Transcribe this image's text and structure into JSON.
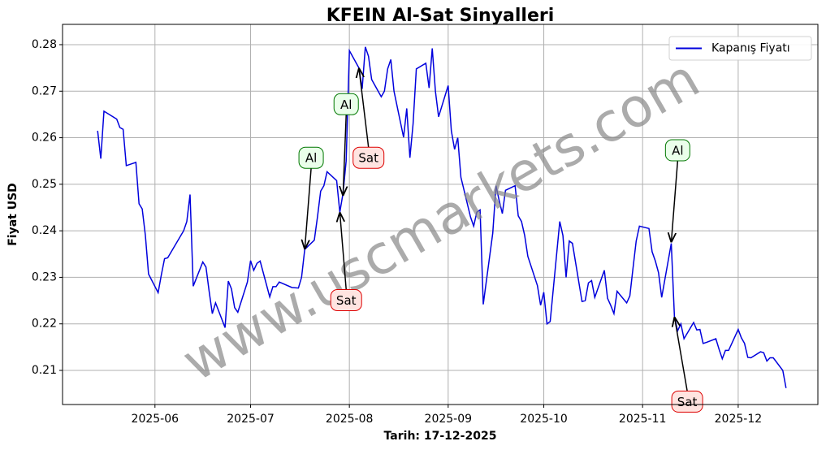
{
  "chart_data": {
    "type": "line",
    "title": "KFEIN Al-Sat Sinyalleri",
    "xlabel": "Tarih: 17-12-2025",
    "ylabel": "Fiyat USD",
    "watermark": "www.uscmarkets.com",
    "legend": "upper right",
    "grid": true,
    "xlim": [
      "2025-05-03",
      "2025-12-26"
    ],
    "ylim": [
      0.20267,
      0.28436
    ],
    "xticks": [
      {
        "value": "2025-06-01",
        "label": "2025-06"
      },
      {
        "value": "2025-07-01",
        "label": "2025-07"
      },
      {
        "value": "2025-08-01",
        "label": "2025-08"
      },
      {
        "value": "2025-09-01",
        "label": "2025-09"
      },
      {
        "value": "2025-10-01",
        "label": "2025-10"
      },
      {
        "value": "2025-11-01",
        "label": "2025-11"
      },
      {
        "value": "2025-12-01",
        "label": "2025-12"
      }
    ],
    "yticks": [
      0.21,
      0.22,
      0.23,
      0.24,
      0.25,
      0.26,
      0.27,
      0.28
    ],
    "x": [
      "2025-05-14",
      "2025-05-15",
      "2025-05-16",
      "2025-05-20",
      "2025-05-21",
      "2025-05-22",
      "2025-05-23",
      "2025-05-26",
      "2025-05-27",
      "2025-05-28",
      "2025-05-29",
      "2025-05-30",
      "2025-06-02",
      "2025-06-03",
      "2025-06-04",
      "2025-06-05",
      "2025-06-10",
      "2025-06-11",
      "2025-06-12",
      "2025-06-13",
      "2025-06-16",
      "2025-06-17",
      "2025-06-18",
      "2025-06-19",
      "2025-06-20",
      "2025-06-23",
      "2025-06-24",
      "2025-06-25",
      "2025-06-26",
      "2025-06-27",
      "2025-06-30",
      "2025-07-01",
      "2025-07-02",
      "2025-07-03",
      "2025-07-04",
      "2025-07-07",
      "2025-07-08",
      "2025-07-09",
      "2025-07-10",
      "2025-07-14",
      "2025-07-16",
      "2025-07-17",
      "2025-07-18",
      "2025-07-21",
      "2025-07-22",
      "2025-07-23",
      "2025-07-24",
      "2025-07-25",
      "2025-07-28",
      "2025-07-29",
      "2025-07-30",
      "2025-07-31",
      "2025-08-01",
      "2025-08-04",
      "2025-08-05",
      "2025-08-06",
      "2025-08-07",
      "2025-08-08",
      "2025-08-11",
      "2025-08-12",
      "2025-08-13",
      "2025-08-14",
      "2025-08-15",
      "2025-08-18",
      "2025-08-19",
      "2025-08-20",
      "2025-08-21",
      "2025-08-22",
      "2025-08-25",
      "2025-08-26",
      "2025-08-27",
      "2025-08-28",
      "2025-08-29",
      "2025-09-01",
      "2025-09-02",
      "2025-09-03",
      "2025-09-04",
      "2025-09-05",
      "2025-09-08",
      "2025-09-09",
      "2025-09-10",
      "2025-09-11",
      "2025-09-12",
      "2025-09-15",
      "2025-09-16",
      "2025-09-17",
      "2025-09-18",
      "2025-09-19",
      "2025-09-22",
      "2025-09-23",
      "2025-09-24",
      "2025-09-25",
      "2025-09-26",
      "2025-09-29",
      "2025-09-30",
      "2025-10-01",
      "2025-10-02",
      "2025-10-03",
      "2025-10-06",
      "2025-10-07",
      "2025-10-08",
      "2025-10-09",
      "2025-10-10",
      "2025-10-13",
      "2025-10-14",
      "2025-10-15",
      "2025-10-16",
      "2025-10-17",
      "2025-10-20",
      "2025-10-21",
      "2025-10-22",
      "2025-10-23",
      "2025-10-24",
      "2025-10-27",
      "2025-10-28",
      "2025-10-29",
      "2025-10-30",
      "2025-10-31",
      "2025-11-03",
      "2025-11-04",
      "2025-11-05",
      "2025-11-06",
      "2025-11-07",
      "2025-11-10",
      "2025-11-11",
      "2025-11-12",
      "2025-11-13",
      "2025-11-14",
      "2025-11-17",
      "2025-11-18",
      "2025-11-19",
      "2025-11-20",
      "2025-11-21",
      "2025-11-24",
      "2025-11-25",
      "2025-11-26",
      "2025-11-27",
      "2025-11-28",
      "2025-12-01",
      "2025-12-02",
      "2025-12-03",
      "2025-12-04",
      "2025-12-05",
      "2025-12-08",
      "2025-12-09",
      "2025-12-10",
      "2025-12-11",
      "2025-12-12",
      "2025-12-15",
      "2025-12-16"
    ],
    "series": [
      {
        "name": "Kapanış Fiyatı",
        "color": "#0000dd",
        "values": [
          0.2615,
          0.2555,
          0.2657,
          0.264,
          0.2622,
          0.2618,
          0.254,
          0.2547,
          0.2458,
          0.2447,
          0.239,
          0.2307,
          0.2267,
          0.2305,
          0.234,
          0.2342,
          0.24,
          0.242,
          0.2478,
          0.2281,
          0.2333,
          0.2322,
          0.227,
          0.2222,
          0.2245,
          0.2192,
          0.2292,
          0.2275,
          0.2235,
          0.2225,
          0.229,
          0.2336,
          0.2315,
          0.233,
          0.2335,
          0.2258,
          0.228,
          0.228,
          0.229,
          0.2278,
          0.2277,
          0.23,
          0.236,
          0.238,
          0.243,
          0.2485,
          0.2497,
          0.2527,
          0.2508,
          0.244,
          0.248,
          0.255,
          0.2787,
          0.275,
          0.2705,
          0.2795,
          0.2775,
          0.2725,
          0.2688,
          0.27,
          0.2748,
          0.2768,
          0.27,
          0.2601,
          0.2663,
          0.2557,
          0.263,
          0.2748,
          0.276,
          0.2707,
          0.2792,
          0.27,
          0.2645,
          0.2712,
          0.2615,
          0.2575,
          0.26,
          0.2515,
          0.243,
          0.241,
          0.244,
          0.2445,
          0.2242,
          0.2395,
          0.2497,
          0.2465,
          0.2437,
          0.2487,
          0.2497,
          0.2432,
          0.242,
          0.239,
          0.2345,
          0.2282,
          0.224,
          0.2268,
          0.22,
          0.2205,
          0.242,
          0.239,
          0.23,
          0.2378,
          0.2373,
          0.2248,
          0.225,
          0.2288,
          0.2293,
          0.2257,
          0.2315,
          0.2255,
          0.224,
          0.2222,
          0.227,
          0.2245,
          0.226,
          0.232,
          0.2378,
          0.241,
          0.2405,
          0.2355,
          0.2335,
          0.231,
          0.2257,
          0.2373,
          0.2215,
          0.2185,
          0.22,
          0.2168,
          0.2203,
          0.2187,
          0.2188,
          0.2158,
          0.216,
          0.2168,
          0.2145,
          0.2125,
          0.2143,
          0.2143,
          0.2188,
          0.217,
          0.2158,
          0.2128,
          0.2127,
          0.214,
          0.2138,
          0.212,
          0.2127,
          0.2127,
          0.21,
          0.2062
        ]
      }
    ],
    "annotations": [
      {
        "label": "Al",
        "x": "2025-07-18",
        "y": 0.236,
        "text_x": "2025-07-20",
        "text_y": 0.2557
      },
      {
        "label": "Al",
        "x": "2025-07-30",
        "y": 0.2475,
        "text_x": "2025-07-31",
        "text_y": 0.2672
      },
      {
        "label": "Sat",
        "x": "2025-08-04",
        "y": 0.275,
        "text_x": "2025-08-07",
        "text_y": 0.2557
      },
      {
        "label": "Sat",
        "x": "2025-07-29",
        "y": 0.244,
        "text_x": "2025-07-31",
        "text_y": 0.2251
      },
      {
        "label": "Al",
        "x": "2025-11-10",
        "y": 0.2375,
        "text_x": "2025-11-12",
        "text_y": 0.2573
      },
      {
        "label": "Sat",
        "x": "2025-11-11",
        "y": 0.2215,
        "text_x": "2025-11-15",
        "text_y": 0.2033
      }
    ]
  }
}
